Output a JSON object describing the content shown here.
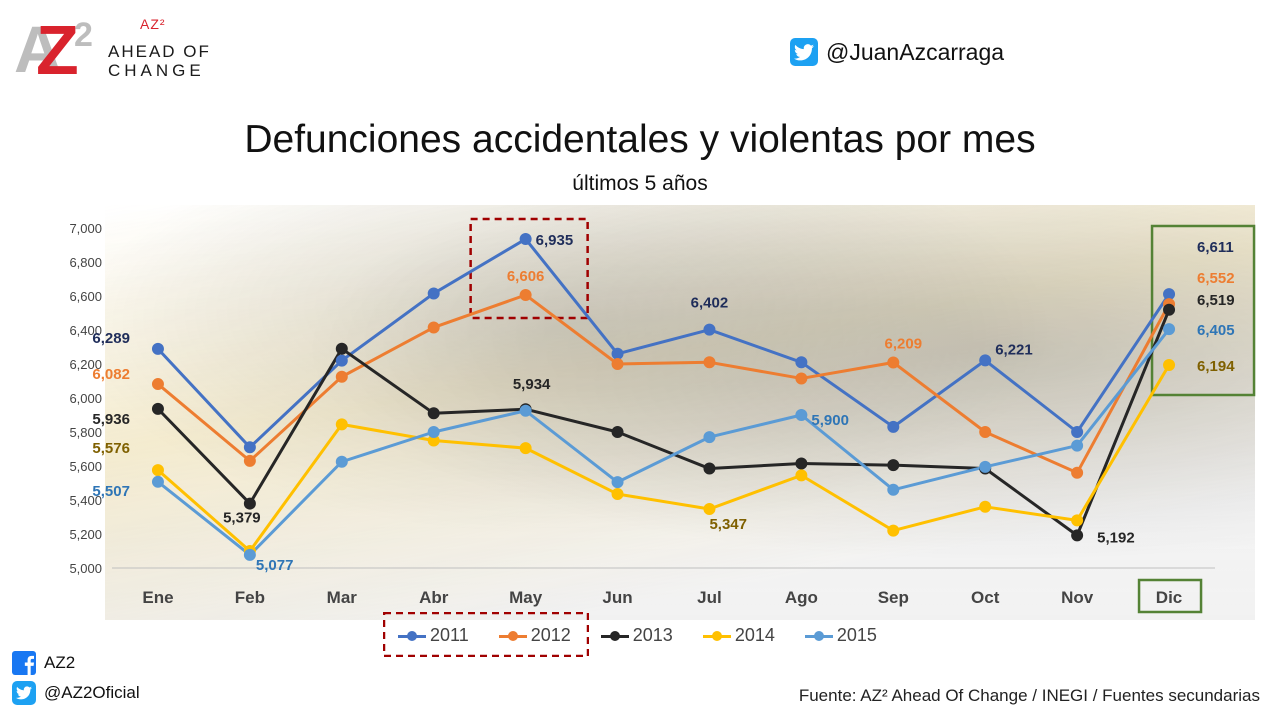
{
  "brand": {
    "az2": "AZ²",
    "line1": "AHEAD OF",
    "line2": "CHANGE",
    "logo_letters": "AZ2"
  },
  "twitter_top": {
    "handle": "@JuanAzcarraga",
    "icon": "twitter-icon"
  },
  "social": {
    "facebook": {
      "label": "AZ2",
      "icon": "facebook-icon"
    },
    "twitter": {
      "label": "@AZ2Oficial",
      "icon": "twitter-icon"
    }
  },
  "source": "Fuente: AZ² Ahead Of Change / INEGI / Fuentes secundarias",
  "chart_data": {
    "type": "line",
    "title": "Defunciones accidentales y violentas por mes",
    "subtitle": "últimos 5 años",
    "xlabel": "",
    "ylabel": "",
    "categories": [
      "Ene",
      "Feb",
      "Mar",
      "Abr",
      "May",
      "Jun",
      "Jul",
      "Ago",
      "Sep",
      "Oct",
      "Nov",
      "Dic"
    ],
    "ylim": [
      5000,
      7000
    ],
    "yticks": [
      5000,
      5200,
      5400,
      5600,
      5800,
      6000,
      6200,
      6400,
      6600,
      6800,
      7000
    ],
    "ytick_labels": [
      "5,000",
      "5,200",
      "5,400",
      "5,600",
      "5,800",
      "6,000",
      "6,200",
      "6,400",
      "6,600",
      "6,800",
      "7,000"
    ],
    "legend_position": "bottom",
    "grid": false,
    "series": [
      {
        "name": "2011",
        "color": "#4472c4",
        "label_color": "#1f2d5a",
        "values": [
          6289,
          5710,
          6220,
          6615,
          6935,
          6260,
          6402,
          6210,
          5830,
          6221,
          5800,
          6611
        ],
        "labels": [
          {
            "index": 0,
            "text": "6,289"
          },
          {
            "index": 4,
            "text": "6,935"
          },
          {
            "index": 6,
            "text": "6,402"
          },
          {
            "index": 9,
            "text": "6,221"
          },
          {
            "index": 11,
            "text": "6,611"
          }
        ]
      },
      {
        "name": "2012",
        "color": "#ed7d31",
        "label_color": "#ed7d31",
        "values": [
          6082,
          5630,
          6125,
          6415,
          6606,
          6200,
          6210,
          6115,
          6209,
          5800,
          5560,
          6552
        ],
        "labels": [
          {
            "index": 0,
            "text": "6,082"
          },
          {
            "index": 4,
            "text": "6,606"
          },
          {
            "index": 8,
            "text": "6,209"
          },
          {
            "index": 11,
            "text": "6,552"
          }
        ]
      },
      {
        "name": "2013",
        "color": "#262626",
        "label_color": "#262626",
        "values": [
          5936,
          5379,
          6290,
          5910,
          5934,
          5800,
          5585,
          5615,
          5605,
          5585,
          5192,
          6519
        ],
        "labels": [
          {
            "index": 0,
            "text": "5,936"
          },
          {
            "index": 1,
            "text": "5,379"
          },
          {
            "index": 4,
            "text": "5,934"
          },
          {
            "index": 10,
            "text": "5,192"
          },
          {
            "index": 11,
            "text": "6,519"
          }
        ]
      },
      {
        "name": "2014",
        "color": "#ffc000",
        "label_color": "#7f6000",
        "values": [
          5576,
          5100,
          5845,
          5750,
          5705,
          5435,
          5347,
          5545,
          5220,
          5360,
          5280,
          6194
        ],
        "labels": [
          {
            "index": 0,
            "text": "5,576"
          },
          {
            "index": 6,
            "text": "5,347"
          },
          {
            "index": 11,
            "text": "6,194"
          }
        ]
      },
      {
        "name": "2015",
        "color": "#5b9bd5",
        "label_color": "#2e75b6",
        "values": [
          5507,
          5077,
          5625,
          5800,
          5925,
          5505,
          5770,
          5900,
          5460,
          5595,
          5720,
          6405
        ],
        "labels": [
          {
            "index": 0,
            "text": "5,507"
          },
          {
            "index": 1,
            "text": "5,077"
          },
          {
            "index": 7,
            "text": "5,900"
          },
          {
            "index": 11,
            "text": "6,405"
          }
        ]
      }
    ],
    "highlights": [
      {
        "target": "May peak",
        "style": "dashed",
        "color": "#a00000"
      },
      {
        "target": "Dic values",
        "style": "solid",
        "color": "#548235"
      },
      {
        "target": "Dic category",
        "style": "solid",
        "color": "#548235"
      },
      {
        "target": "legend 2011",
        "style": "dashed",
        "color": "#a00000"
      }
    ]
  }
}
